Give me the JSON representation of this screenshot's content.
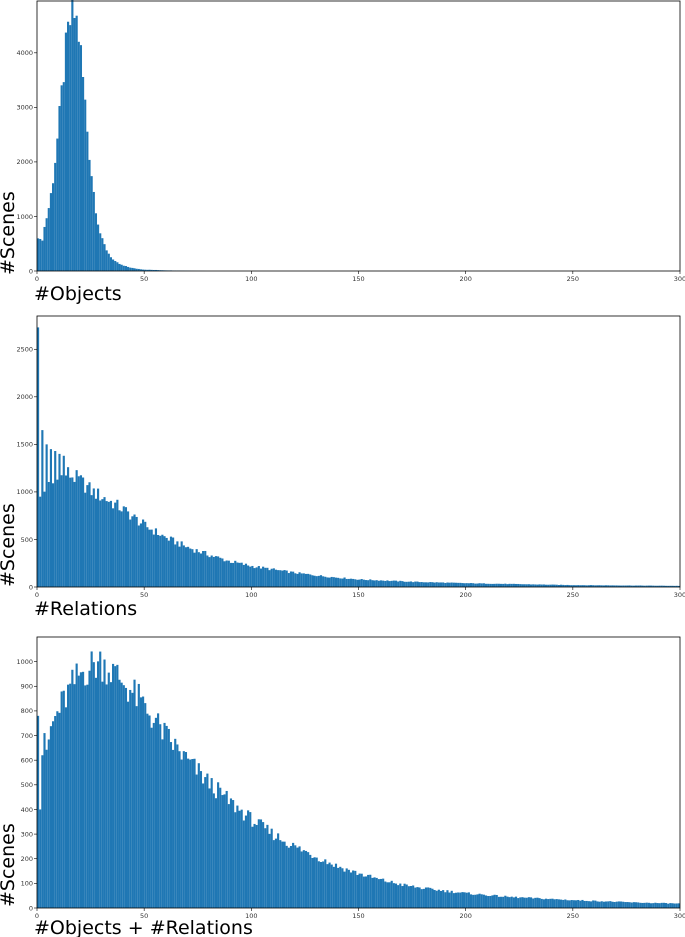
{
  "colors": {
    "bar": "#1f77b4",
    "frame": "#000000",
    "background": "#ffffff"
  },
  "chart_data": [
    {
      "type": "bar",
      "title": "",
      "xlabel": "#Objects",
      "ylabel": "#Scenes",
      "xlim": [
        0,
        300
      ],
      "ylim": [
        0,
        4950
      ],
      "x_ticks": [
        0,
        50,
        100,
        150,
        200,
        250,
        300
      ],
      "y_ticks": [
        0,
        1000,
        2000,
        3000,
        4000
      ],
      "bin_width": 1,
      "anchors": [
        [
          0,
          700
        ],
        [
          2,
          500
        ],
        [
          4,
          900
        ],
        [
          6,
          1250
        ],
        [
          8,
          1850
        ],
        [
          10,
          2600
        ],
        [
          12,
          3450
        ],
        [
          14,
          4250
        ],
        [
          16,
          4650
        ],
        [
          18,
          4700
        ],
        [
          20,
          4200
        ],
        [
          22,
          3300
        ],
        [
          24,
          2350
        ],
        [
          26,
          1600
        ],
        [
          28,
          1000
        ],
        [
          30,
          600
        ],
        [
          33,
          350
        ],
        [
          36,
          180
        ],
        [
          40,
          100
        ],
        [
          45,
          50
        ],
        [
          50,
          25
        ],
        [
          60,
          12
        ],
        [
          70,
          5
        ],
        [
          80,
          0
        ],
        [
          300,
          0
        ]
      ],
      "grid": false,
      "legend": "none"
    },
    {
      "type": "bar",
      "title": "",
      "xlabel": "#Relations",
      "ylabel": "#Scenes",
      "xlim": [
        0,
        300
      ],
      "ylim": [
        0,
        2850
      ],
      "x_ticks": [
        0,
        50,
        100,
        150,
        200,
        250,
        300
      ],
      "y_ticks": [
        0,
        500,
        1000,
        1500,
        2000,
        2500
      ],
      "bin_width": 1,
      "spikes": [
        [
          0,
          2730
        ],
        [
          1,
          950
        ],
        [
          2,
          1650
        ],
        [
          4,
          1500
        ],
        [
          6,
          1450
        ],
        [
          8,
          1430
        ],
        [
          10,
          1400
        ],
        [
          12,
          1380
        ]
      ],
      "anchors": [
        [
          0,
          950
        ],
        [
          3,
          1000
        ],
        [
          8,
          1100
        ],
        [
          14,
          1200
        ],
        [
          20,
          1120
        ],
        [
          26,
          1000
        ],
        [
          32,
          930
        ],
        [
          40,
          820
        ],
        [
          50,
          650
        ],
        [
          60,
          520
        ],
        [
          70,
          420
        ],
        [
          80,
          340
        ],
        [
          90,
          270
        ],
        [
          100,
          220
        ],
        [
          110,
          185
        ],
        [
          120,
          150
        ],
        [
          135,
          110
        ],
        [
          150,
          80
        ],
        [
          175,
          55
        ],
        [
          200,
          40
        ],
        [
          250,
          20
        ],
        [
          300,
          12
        ]
      ],
      "grid": false,
      "legend": "none"
    },
    {
      "type": "bar",
      "title": "",
      "xlabel": "#Objects + #Relations",
      "ylabel": "#Scenes",
      "xlim": [
        0,
        300
      ],
      "ylim": [
        0,
        1100
      ],
      "x_ticks": [
        0,
        50,
        100,
        150,
        200,
        250,
        300
      ],
      "y_ticks": [
        0,
        100,
        200,
        300,
        400,
        500,
        600,
        700,
        800,
        900,
        1000
      ],
      "bin_width": 1,
      "spikes": [
        [
          0,
          780
        ],
        [
          1,
          400
        ],
        [
          2,
          620
        ],
        [
          3,
          710
        ]
      ],
      "anchors": [
        [
          4,
          560
        ],
        [
          6,
          720
        ],
        [
          10,
          800
        ],
        [
          15,
          880
        ],
        [
          20,
          950
        ],
        [
          25,
          980
        ],
        [
          30,
          1000
        ],
        [
          35,
          960
        ],
        [
          40,
          920
        ],
        [
          45,
          870
        ],
        [
          50,
          820
        ],
        [
          55,
          760
        ],
        [
          60,
          700
        ],
        [
          70,
          600
        ],
        [
          80,
          510
        ],
        [
          90,
          430
        ],
        [
          100,
          360
        ],
        [
          110,
          300
        ],
        [
          120,
          250
        ],
        [
          130,
          210
        ],
        [
          140,
          170
        ],
        [
          150,
          140
        ],
        [
          160,
          115
        ],
        [
          170,
          95
        ],
        [
          180,
          80
        ],
        [
          200,
          60
        ],
        [
          220,
          45
        ],
        [
          250,
          32
        ],
        [
          280,
          22
        ],
        [
          300,
          18
        ]
      ],
      "grid": false,
      "legend": "none"
    }
  ]
}
